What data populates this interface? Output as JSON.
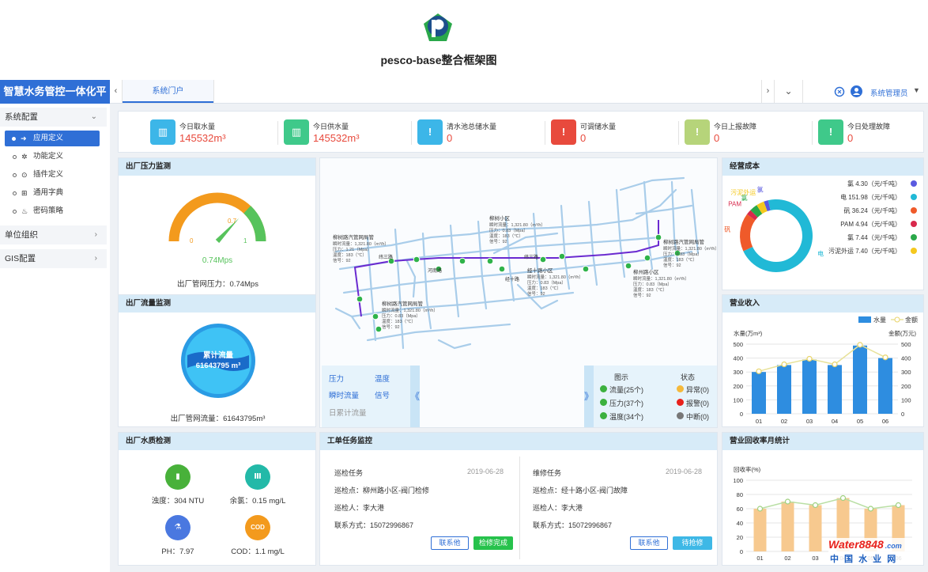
{
  "doc_title": "pesco-base整合框架图",
  "brand": "智慧水务管控一体化平台",
  "tabs": [
    {
      "label": "系统门户"
    }
  ],
  "user": {
    "name": "系统管理员"
  },
  "sidebar": {
    "groups": [
      {
        "label": "系统配置",
        "items": [
          {
            "label": "应用定义",
            "icon": "login-icon",
            "active": true
          },
          {
            "label": "功能定义",
            "icon": "gear-icon"
          },
          {
            "label": "插件定义",
            "icon": "plugin-icon"
          },
          {
            "label": "通用字典",
            "icon": "dictionary-icon"
          },
          {
            "label": "密码策略",
            "icon": "fire-icon"
          }
        ]
      },
      {
        "label": "单位组织"
      },
      {
        "label": "GIS配置"
      }
    ]
  },
  "stats": [
    {
      "label": "今日取水量",
      "value": "145532m³",
      "color": "#3cb6e8",
      "icon": "water-intake-icon"
    },
    {
      "label": "今日供水量",
      "value": "145532m³",
      "color": "#3fc98a",
      "icon": "water-supply-icon"
    },
    {
      "label": "清水池总储水量",
      "value": "0",
      "color": "#3cb6e8",
      "icon": "alert-icon"
    },
    {
      "label": "可调储水量",
      "value": "0",
      "color": "#e84a3d",
      "icon": "alert-icon"
    },
    {
      "label": "今日上报故障",
      "value": "0",
      "color": "#b6d47a",
      "icon": "alert-icon"
    },
    {
      "label": "今日处理故障",
      "value": "0",
      "color": "#3fc98a",
      "icon": "alert-icon"
    }
  ],
  "pressure": {
    "title": "出厂压力监测",
    "gauge_min": "0",
    "gauge_max": "1",
    "gauge_mark": "0.7",
    "value_label": "0.74Mps",
    "value": 0.74,
    "caption": "出厂管网压力：0.74Mps"
  },
  "flow": {
    "title": "出厂流量监测",
    "badge_title": "累计流量",
    "badge_value": "61643795 m³",
    "caption": "出厂管网流量：61643795m³"
  },
  "quality": {
    "title": "出厂水质检测",
    "items": [
      {
        "label": "浊度：304 NTU",
        "color": "#48b13a",
        "icon": "test-tube-icon",
        "glyph": "▮"
      },
      {
        "label": "余氯：0.15 mg/L",
        "color": "#23b9a8",
        "icon": "factory-icon",
        "glyph": "Ⅲ"
      },
      {
        "label": "PH：7.97",
        "color": "#4a78e0",
        "icon": "flask-icon",
        "glyph": "⚗"
      },
      {
        "label": "COD：1.1 mg/L",
        "color": "#f39a1d",
        "icon": "cod-icon",
        "glyph": "COD"
      }
    ]
  },
  "map": {
    "roads": [
      {
        "label": "纬三路"
      },
      {
        "label": "河南路"
      },
      {
        "label": "经十路"
      },
      {
        "label": "纬三路"
      }
    ],
    "stations": [
      {
        "title": "柳树路汽管网局管",
        "lines": [
          "瞬时流量：1,321.80（m³/h）",
          "压力：1.21（Mpa）",
          "温度：183（℃）",
          "信号：92"
        ]
      },
      {
        "title": "柳树小区",
        "lines": [
          "瞬时流量：1,321.80（m³/h）",
          "压力：0.83（Mpa）",
          "温度：183（℃）",
          "信号：92"
        ]
      },
      {
        "title": "柳树路汽管网局管",
        "lines": [
          "瞬时流量：1,321.80（m³/h）",
          "压力：0.83（Mpa）",
          "温度：183（℃）",
          "信号：92"
        ]
      },
      {
        "title": "经十路小区",
        "lines": [
          "瞬时流量：1,321.80（m³/h）",
          "压力：0.83（Mpa）",
          "温度：183（℃）",
          "信号：92"
        ]
      },
      {
        "title": "柳州路小区",
        "lines": [
          "瞬时流量：1,321.80（m³/h）",
          "压力：0.83（Mpa）",
          "温度：183（℃）",
          "信号：92"
        ]
      },
      {
        "title": "柳树路汽管网局管",
        "lines": [
          "瞬时流量：1,321.80（m³/h）",
          "压力：0.83（Mpa）",
          "温度：183（℃）",
          "信号：92"
        ]
      }
    ],
    "layers": [
      "压力",
      "温度",
      "瞬时流量",
      "信号",
      "日累计流量"
    ],
    "legend_title": "图示",
    "legend_items": [
      "流量(25个)",
      "压力(37个)",
      "温度(34个)"
    ],
    "status_title": "状态",
    "status_items": [
      {
        "label": "异常(0)",
        "color": "#f5b93b"
      },
      {
        "label": "报警(0)",
        "color": "#e8211c"
      },
      {
        "label": "中断(0)",
        "color": "#777777"
      }
    ]
  },
  "cost": {
    "title": "经营成本",
    "chart_data": {
      "type": "pie",
      "labels": [
        "氯",
        "电",
        "矾",
        "PAM",
        "氯",
        "污泥外运"
      ],
      "values": [
        4.3,
        151.98,
        36.24,
        4.94,
        7.44,
        7.4
      ],
      "legend": [
        "氯 4.30（元/千吨）",
        "电 151.98（元/千吨）",
        "矾 36.24（元/千吨）",
        "PAM 4.94（元/千吨）",
        "氯 7.44（元/千吨）",
        "污泥外运 7.40（元/千吨）"
      ],
      "colors": [
        "#5a5ae0",
        "#21b9d6",
        "#ef5a2a",
        "#d8294c",
        "#2aa84a",
        "#f5c81e"
      ],
      "slice_labels": [
        "氯",
        "电",
        "矾",
        "PAM",
        "氯",
        "污泥外运"
      ]
    }
  },
  "revenue": {
    "title": "营业收入",
    "chart_data": {
      "type": "bar",
      "categories": [
        "01",
        "02",
        "03",
        "04",
        "05",
        "06"
      ],
      "series": [
        {
          "name": "水量",
          "values": [
            300,
            350,
            390,
            350,
            490,
            400
          ]
        },
        {
          "name": "金额",
          "values": [
            305,
            355,
            395,
            355,
            495,
            405
          ]
        }
      ],
      "ylabel_left": "水量(万m³)",
      "ylabel_right": "金额(万元)",
      "ylim": [
        0,
        500
      ],
      "yticks": [
        "0",
        "100",
        "200",
        "300",
        "400",
        "500"
      ]
    }
  },
  "tasks": {
    "title": "工单任务监控",
    "items": [
      {
        "type": "巡检任务",
        "date": "2019-06-28",
        "point": "巡检点：柳州路小区-阀门检修",
        "person": "巡检人：李大港",
        "contact": "联系方式：15072996867",
        "btn_contact": "联系他",
        "btn_status": "检修完成",
        "status_style": "green"
      },
      {
        "type": "维修任务",
        "date": "2019-06-28",
        "point": "巡检点：经十路小区-阀门故障",
        "person": "巡检人：李大港",
        "contact": "联系方式：15072996867",
        "btn_contact": "联系他",
        "btn_status": "待抢修",
        "status_style": "cyan"
      }
    ]
  },
  "recovery": {
    "title": "营业回收率月统计",
    "chart_data": {
      "type": "bar",
      "categories": [
        "01",
        "02",
        "03",
        "04",
        "05",
        "06"
      ],
      "values": [
        60,
        70,
        65,
        75,
        60,
        65
      ],
      "ylabel": "回收率(%)",
      "ylim": [
        0,
        100
      ],
      "yticks": [
        "0",
        "20",
        "40",
        "60",
        "80",
        "100"
      ]
    }
  },
  "watermark": {
    "line1": "Water8848",
    "line2": ".com",
    "line3": "中 国 水 业 网"
  }
}
